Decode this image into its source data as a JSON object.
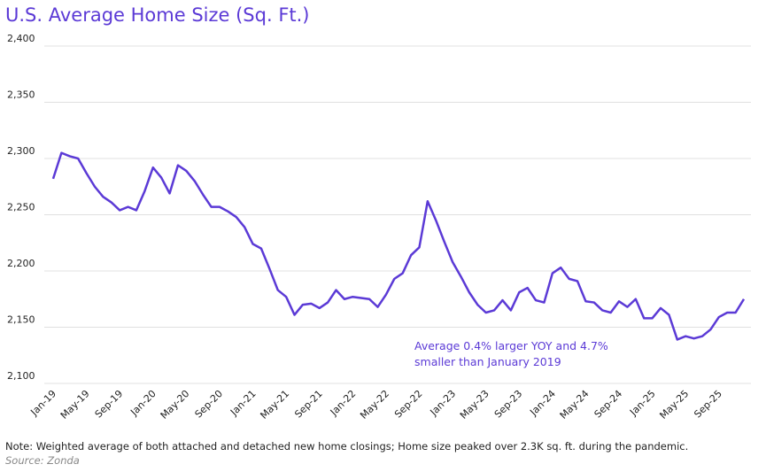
{
  "chart_data": {
    "type": "line",
    "title": "U.S. Average Home Size (Sq. Ft.)",
    "note": "Note: Weighted average of both attached and detached new home closings; Home size peaked over 2.3K sq. ft. during the pandemic.",
    "source": "Source: Zonda",
    "annotation": [
      "Average 0.4% larger YOY and 4.7%",
      "smaller than January 2019"
    ],
    "categories": [
      "Jan-19",
      null,
      null,
      null,
      "May-19",
      null,
      null,
      null,
      "Sep-19",
      null,
      null,
      null,
      "Jan-20",
      null,
      null,
      null,
      "May-20",
      null,
      null,
      null,
      "Sep-20",
      null,
      null,
      null,
      "Jan-21",
      null,
      null,
      null,
      "May-21",
      null,
      null,
      null,
      "Sep-21",
      null,
      null,
      null,
      "Jan-22",
      null,
      null,
      null,
      "May-22",
      null,
      null,
      null,
      "Sep-22",
      null,
      null,
      null,
      "Jan-23",
      null,
      null,
      null,
      "May-23",
      null,
      null,
      null,
      "Sep-23",
      null,
      null,
      null,
      "Jan-24",
      null,
      null,
      null,
      "May-24",
      null,
      null,
      null,
      "Sep-24",
      null,
      null,
      null,
      "Jan-25",
      null,
      null,
      null,
      "May-25",
      null,
      null,
      null,
      "Sep-25",
      null,
      null,
      null
    ],
    "series": [
      {
        "name": "Average home size",
        "color": "#5b3ad6",
        "values": [
          2282,
          2305,
          2302,
          2300,
          2287,
          2275,
          2266,
          2261,
          2254,
          2257,
          2254,
          2271,
          2292,
          2283,
          2269,
          2294,
          2289,
          2280,
          2268,
          2257,
          2257,
          2253,
          2248,
          2239,
          2224,
          2220,
          2202,
          2183,
          2177,
          2161,
          2170,
          2171,
          2167,
          2172,
          2183,
          2175,
          2177,
          2176,
          2175,
          2168,
          2179,
          2193,
          2198,
          2214,
          2221,
          2262,
          2245,
          2226,
          2208,
          2195,
          2181,
          2170,
          2163,
          2165,
          2174,
          2165,
          2181,
          2185,
          2174,
          2172,
          2198,
          2203,
          2193,
          2191,
          2173,
          2172,
          2165,
          2163,
          2173,
          2168,
          2175,
          2158,
          2158,
          2167,
          2161,
          2139,
          2142,
          2140,
          2142,
          2148,
          2159,
          2163,
          2163,
          2175
        ]
      }
    ],
    "ylim": [
      2100,
      2400
    ],
    "yticks": [
      {
        "value": 2100,
        "label": "2,100"
      },
      {
        "value": 2150,
        "label": "2,150"
      },
      {
        "value": 2200,
        "label": "2,200"
      },
      {
        "value": 2250,
        "label": "2,250"
      },
      {
        "value": 2300,
        "label": "2,300"
      },
      {
        "value": 2350,
        "label": "2,350"
      },
      {
        "value": 2400,
        "label": "2,400"
      }
    ],
    "grid": true
  }
}
